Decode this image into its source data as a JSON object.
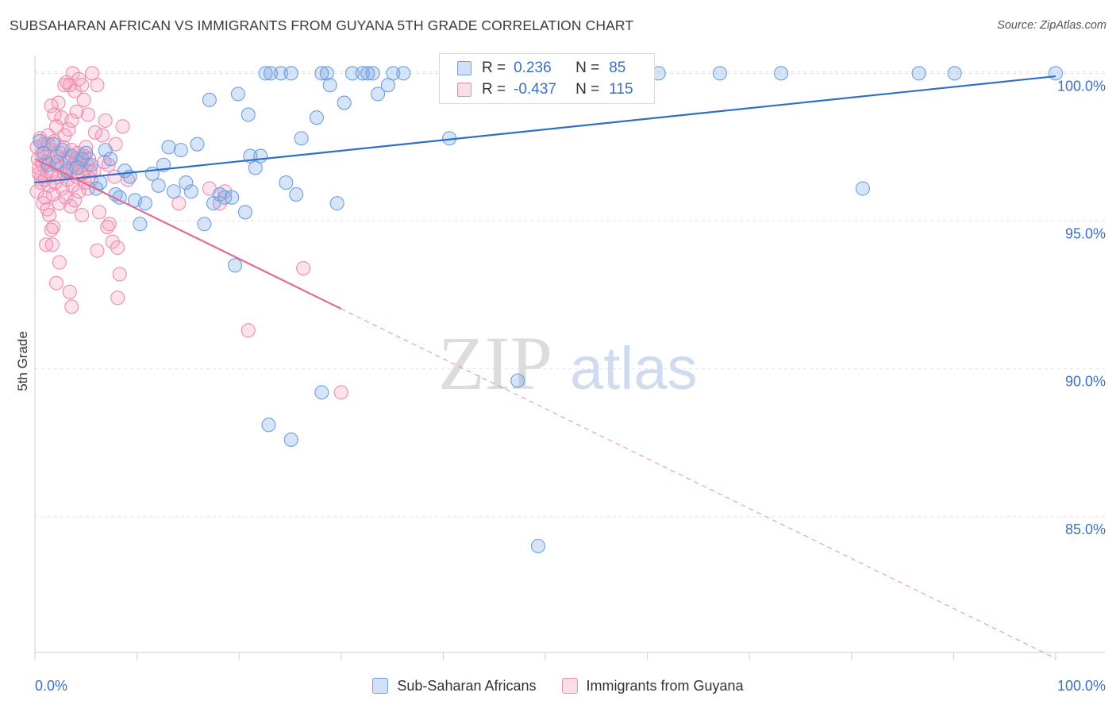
{
  "title": "SUBSAHARAN AFRICAN VS IMMIGRANTS FROM GUYANA 5TH GRADE CORRELATION CHART",
  "source": "Source: ZipAtlas.com",
  "watermark": {
    "zip": "ZIP",
    "atlas": "atlas"
  },
  "legend": {
    "r_label": "R =",
    "n_label": "N =",
    "rows": [
      {
        "r": "0.236",
        "n": "85"
      },
      {
        "r": "-0.437",
        "n": "115"
      }
    ]
  },
  "colors": {
    "blue": "#6f9fe0",
    "blue_fill": "rgba(120,165,230,0.30)",
    "blue_line": "#2f6fc8",
    "pink": "#ee8cb0",
    "pink_fill": "rgba(245,160,190,0.30)",
    "pink_line": "#e06c98",
    "axis_text": "#3b6fc6"
  },
  "chart_data": {
    "type": "scatter",
    "title": "SUBSAHARAN AFRICAN VS IMMIGRANTS FROM GUYANA 5TH GRADE CORRELATION CHART",
    "xlabel": "",
    "ylabel": "5th Grade",
    "xlim": [
      0,
      100
    ],
    "ylim": [
      80.4,
      100.6
    ],
    "x_tick_labels": [
      "0.0%",
      "100.0%"
    ],
    "y_ticks": [
      85,
      90,
      95,
      100
    ],
    "y_tick_labels": [
      "85.0%",
      "90.0%",
      "95.0%",
      "100.0%"
    ],
    "grid": true,
    "series": [
      {
        "name": "Sub-Saharan Africans",
        "color": "blue",
        "r": 0.236,
        "n": 85,
        "trend": {
          "x": [
            0,
            100
          ],
          "y": [
            96.3,
            99.9
          ],
          "solid_to": 100
        },
        "points": [
          [
            0.5,
            97.7
          ],
          [
            0.9,
            97.3
          ],
          [
            1.3,
            96.9
          ],
          [
            1.8,
            97.6
          ],
          [
            2.2,
            97.0
          ],
          [
            2.7,
            97.4
          ],
          [
            3.1,
            96.7
          ],
          [
            3.6,
            97.2
          ],
          [
            4.1,
            96.8
          ],
          [
            4.6,
            97.1
          ],
          [
            5.0,
            97.3
          ],
          [
            5.5,
            96.9
          ],
          [
            6.0,
            96.1
          ],
          [
            6.4,
            96.3
          ],
          [
            6.9,
            97.4
          ],
          [
            7.4,
            97.1
          ],
          [
            7.9,
            95.9
          ],
          [
            8.3,
            95.8
          ],
          [
            8.8,
            96.7
          ],
          [
            9.3,
            96.5
          ],
          [
            9.8,
            95.7
          ],
          [
            10.3,
            94.9
          ],
          [
            10.8,
            95.6
          ],
          [
            11.5,
            96.6
          ],
          [
            12.1,
            96.2
          ],
          [
            12.6,
            96.9
          ],
          [
            13.1,
            97.5
          ],
          [
            13.6,
            96.0
          ],
          [
            14.3,
            97.4
          ],
          [
            14.8,
            96.3
          ],
          [
            15.3,
            96.0
          ],
          [
            15.9,
            97.6
          ],
          [
            16.6,
            94.9
          ],
          [
            17.1,
            99.1
          ],
          [
            17.5,
            95.6
          ],
          [
            18.1,
            95.9
          ],
          [
            18.6,
            95.8
          ],
          [
            19.3,
            95.8
          ],
          [
            19.6,
            93.5
          ],
          [
            19.9,
            99.3
          ],
          [
            20.6,
            95.3
          ],
          [
            20.9,
            98.6
          ],
          [
            21.1,
            97.2
          ],
          [
            21.6,
            96.8
          ],
          [
            22.1,
            97.2
          ],
          [
            22.6,
            100.0
          ],
          [
            23.1,
            100.0
          ],
          [
            24.1,
            100.0
          ],
          [
            24.6,
            96.3
          ],
          [
            25.1,
            100.0
          ],
          [
            25.6,
            95.9
          ],
          [
            26.1,
            97.8
          ],
          [
            27.6,
            98.5
          ],
          [
            28.1,
            100.0
          ],
          [
            28.6,
            100.0
          ],
          [
            28.9,
            99.6
          ],
          [
            29.6,
            95.6
          ],
          [
            30.3,
            99.0
          ],
          [
            31.1,
            100.0
          ],
          [
            32.1,
            100.0
          ],
          [
            32.6,
            100.0
          ],
          [
            33.1,
            100.0
          ],
          [
            33.6,
            99.3
          ],
          [
            34.6,
            99.6
          ],
          [
            35.1,
            100.0
          ],
          [
            36.1,
            100.0
          ],
          [
            40.6,
            97.8
          ],
          [
            41.1,
            100.0
          ],
          [
            42.1,
            100.0
          ],
          [
            47.6,
            100.0
          ],
          [
            50.1,
            100.0
          ],
          [
            52.1,
            100.0
          ],
          [
            56.1,
            100.0
          ],
          [
            61.1,
            100.0
          ],
          [
            67.1,
            100.0
          ],
          [
            73.1,
            100.0
          ],
          [
            81.1,
            96.1
          ],
          [
            86.6,
            100.0
          ],
          [
            90.1,
            100.0
          ],
          [
            100.0,
            100.0
          ],
          [
            22.9,
            88.1
          ],
          [
            25.1,
            87.6
          ],
          [
            28.1,
            89.2
          ],
          [
            47.3,
            89.6
          ],
          [
            49.3,
            84.0
          ]
        ]
      },
      {
        "name": "Immigrants from Guyana",
        "color": "pink",
        "r": -0.437,
        "n": 115,
        "trend": {
          "x": [
            0,
            100
          ],
          "y": [
            97.1,
            80.2
          ],
          "solid_to": 30
        },
        "points": [
          [
            0.2,
            97.5
          ],
          [
            0.3,
            97.1
          ],
          [
            0.4,
            96.8
          ],
          [
            0.5,
            97.8
          ],
          [
            0.6,
            96.5
          ],
          [
            0.7,
            97.3
          ],
          [
            0.8,
            96.9
          ],
          [
            0.9,
            97.6
          ],
          [
            1.0,
            96.4
          ],
          [
            1.1,
            97.0
          ],
          [
            1.2,
            96.7
          ],
          [
            1.3,
            97.9
          ],
          [
            1.4,
            96.2
          ],
          [
            1.5,
            97.4
          ],
          [
            1.6,
            96.6
          ],
          [
            1.7,
            97.1
          ],
          [
            1.8,
            95.9
          ],
          [
            1.9,
            97.7
          ],
          [
            2.0,
            96.3
          ],
          [
            2.1,
            96.9
          ],
          [
            2.2,
            97.2
          ],
          [
            2.3,
            96.5
          ],
          [
            2.4,
            95.6
          ],
          [
            2.5,
            97.3
          ],
          [
            2.6,
            96.8
          ],
          [
            2.7,
            96.1
          ],
          [
            2.8,
            97.5
          ],
          [
            2.9,
            96.6
          ],
          [
            3.0,
            95.8
          ],
          [
            3.1,
            97.0
          ],
          [
            3.2,
            96.4
          ],
          [
            3.3,
            97.2
          ],
          [
            3.4,
            96.7
          ],
          [
            3.5,
            95.5
          ],
          [
            3.6,
            97.4
          ],
          [
            3.7,
            96.2
          ],
          [
            3.8,
            96.9
          ],
          [
            3.9,
            95.7
          ],
          [
            4.0,
            97.1
          ],
          [
            4.1,
            96.5
          ],
          [
            4.2,
            97.3
          ],
          [
            4.3,
            96.0
          ],
          [
            4.4,
            96.8
          ],
          [
            4.5,
            97.0
          ],
          [
            4.6,
            95.2
          ],
          [
            4.7,
            96.6
          ],
          [
            4.8,
            97.2
          ],
          [
            4.9,
            96.3
          ],
          [
            5.0,
            97.5
          ],
          [
            5.1,
            96.9
          ],
          [
            5.2,
            96.1
          ],
          [
            5.3,
            97.1
          ],
          [
            5.4,
            96.7
          ],
          [
            5.5,
            96.4
          ],
          [
            0.2,
            96.0
          ],
          [
            0.4,
            96.6
          ],
          [
            0.6,
            96.3
          ],
          [
            0.8,
            95.6
          ],
          [
            1.0,
            95.8
          ],
          [
            1.2,
            95.4
          ],
          [
            1.4,
            95.2
          ],
          [
            1.6,
            94.7
          ],
          [
            1.8,
            94.8
          ],
          [
            1.1,
            94.2
          ],
          [
            1.7,
            94.2
          ],
          [
            2.4,
            93.6
          ],
          [
            2.1,
            92.9
          ],
          [
            3.4,
            92.6
          ],
          [
            3.6,
            92.1
          ],
          [
            6.1,
            94.0
          ],
          [
            6.3,
            95.3
          ],
          [
            7.3,
            94.9
          ],
          [
            7.6,
            94.3
          ],
          [
            8.1,
            94.1
          ],
          [
            8.3,
            93.2
          ],
          [
            8.1,
            92.4
          ],
          [
            7.1,
            94.8
          ],
          [
            6.6,
            97.9
          ],
          [
            7.2,
            96.9
          ],
          [
            7.9,
            97.6
          ],
          [
            8.6,
            98.2
          ],
          [
            9.1,
            96.4
          ],
          [
            5.2,
            98.6
          ],
          [
            5.9,
            98.0
          ],
          [
            6.9,
            98.4
          ],
          [
            4.1,
            98.7
          ],
          [
            3.9,
            99.4
          ],
          [
            3.4,
            99.6
          ],
          [
            3.7,
            100.0
          ],
          [
            4.6,
            99.6
          ],
          [
            6.1,
            99.6
          ],
          [
            5.6,
            100.0
          ],
          [
            2.9,
            99.6
          ],
          [
            2.3,
            99.0
          ],
          [
            2.6,
            98.5
          ],
          [
            1.6,
            98.9
          ],
          [
            1.9,
            98.6
          ],
          [
            2.1,
            98.2
          ],
          [
            2.9,
            97.9
          ],
          [
            3.3,
            98.1
          ],
          [
            4.8,
            99.1
          ],
          [
            3.1,
            99.7
          ],
          [
            4.3,
            99.8
          ],
          [
            3.6,
            98.4
          ],
          [
            17.1,
            96.1
          ],
          [
            14.1,
            95.6
          ],
          [
            18.1,
            95.6
          ],
          [
            18.6,
            96.0
          ],
          [
            26.3,
            93.4
          ],
          [
            20.9,
            91.3
          ],
          [
            30.0,
            89.2
          ],
          [
            5.8,
            96.7
          ],
          [
            6.8,
            97.0
          ],
          [
            7.8,
            96.5
          ],
          [
            1.3,
            97.6
          ]
        ]
      }
    ]
  }
}
